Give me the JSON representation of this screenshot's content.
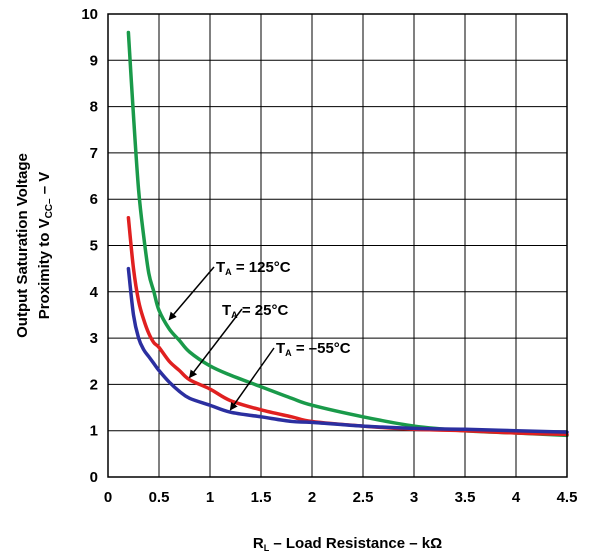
{
  "chart_data": {
    "type": "line",
    "x_axis": {
      "label_main": "R",
      "label_sub": "L",
      "label_rest": " – Load Resistance – kΩ",
      "min": 0,
      "max": 4.5,
      "ticks": [
        "0",
        "0.5",
        "1",
        "1.5",
        "2",
        "2.5",
        "3",
        "3.5",
        "4",
        "4.5"
      ]
    },
    "y_axis": {
      "label_line1": "Output Saturation Voltage",
      "label_line2_main": "Proximity to V",
      "label_line2_sub": "CC–",
      "label_line2_rest": " – V",
      "min": 0,
      "max": 10,
      "ticks": [
        "0",
        "1",
        "2",
        "3",
        "4",
        "5",
        "6",
        "7",
        "8",
        "9",
        "10"
      ]
    },
    "grid": true,
    "series": [
      {
        "name": "T_A = 125°C",
        "color": "#1a9a4a",
        "x": [
          0.2,
          0.25,
          0.3,
          0.35,
          0.4,
          0.45,
          0.5,
          0.6,
          0.7,
          0.8,
          1.0,
          1.2,
          1.5,
          1.8,
          2.0,
          2.5,
          3.0,
          3.5,
          4.0,
          4.5
        ],
        "y": [
          9.6,
          7.8,
          6.2,
          5.2,
          4.4,
          4.0,
          3.6,
          3.2,
          2.95,
          2.7,
          2.4,
          2.2,
          1.95,
          1.7,
          1.55,
          1.3,
          1.1,
          1.0,
          0.95,
          0.9
        ]
      },
      {
        "name": "T_A = 25°C",
        "color": "#e02020",
        "x": [
          0.2,
          0.25,
          0.3,
          0.35,
          0.4,
          0.45,
          0.5,
          0.6,
          0.7,
          0.8,
          1.0,
          1.2,
          1.5,
          1.8,
          2.0,
          2.5,
          3.0,
          3.5,
          4.0,
          4.5
        ],
        "y": [
          5.6,
          4.5,
          3.8,
          3.4,
          3.1,
          2.9,
          2.8,
          2.5,
          2.3,
          2.1,
          1.9,
          1.65,
          1.45,
          1.3,
          1.2,
          1.1,
          1.03,
          1.0,
          0.95,
          0.92
        ]
      },
      {
        "name": "T_A = –55°C",
        "color": "#2b2fa0",
        "x": [
          0.2,
          0.25,
          0.3,
          0.35,
          0.4,
          0.45,
          0.5,
          0.6,
          0.7,
          0.8,
          1.0,
          1.2,
          1.5,
          1.8,
          2.0,
          2.5,
          3.0,
          3.5,
          4.0,
          4.5
        ],
        "y": [
          4.5,
          3.5,
          3.0,
          2.75,
          2.6,
          2.45,
          2.3,
          2.05,
          1.85,
          1.7,
          1.55,
          1.4,
          1.3,
          1.2,
          1.18,
          1.1,
          1.05,
          1.03,
          1.0,
          0.97
        ]
      }
    ],
    "annotations": [
      {
        "label_main": "T",
        "label_sub": "A",
        "label_rest": " = 125°C",
        "points_to": {
          "x": 0.6,
          "y": 3.4
        }
      },
      {
        "label_main": "T",
        "label_sub": "A",
        "label_rest": " = 25°C",
        "points_to": {
          "x": 0.8,
          "y": 2.15
        }
      },
      {
        "label_main": "T",
        "label_sub": "A",
        "label_rest": " = –55°C",
        "points_to": {
          "x": 1.2,
          "y": 1.45
        }
      }
    ]
  }
}
